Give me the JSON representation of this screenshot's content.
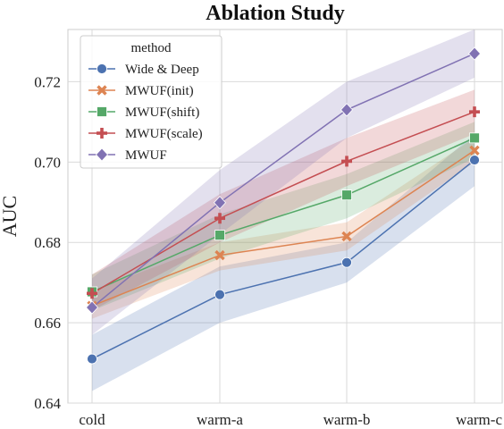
{
  "chart_data": {
    "type": "line",
    "title": "Ablation Study",
    "xlabel": "",
    "ylabel": "AUC",
    "categories": [
      "cold",
      "warm-a",
      "warm-b",
      "warm-c"
    ],
    "ylim": [
      0.64,
      0.733
    ],
    "yticks": [
      "0.64",
      "0.66",
      "0.68",
      "0.70",
      "0.72"
    ],
    "grid": true,
    "legend": {
      "title": "method",
      "placement": "top-left"
    },
    "series": [
      {
        "name": "Wide & Deep",
        "color": "#4c72b0",
        "marker": "circle",
        "values": [
          0.651,
          0.667,
          0.675,
          0.7005
        ],
        "band_low": [
          0.643,
          0.66,
          0.67,
          0.694
        ],
        "band_high": [
          0.657,
          0.674,
          0.68,
          0.707
        ]
      },
      {
        "name": "MWUF(init)",
        "color": "#dd8452",
        "marker": "x",
        "values": [
          0.6642,
          0.6768,
          0.6815,
          0.7029
        ],
        "band_low": [
          0.661,
          0.673,
          0.678,
          0.7
        ],
        "band_high": [
          0.668,
          0.68,
          0.685,
          0.706
        ]
      },
      {
        "name": "MWUF(shift)",
        "color": "#55a868",
        "marker": "square",
        "values": [
          0.6677,
          0.6818,
          0.6918,
          0.706
        ],
        "band_low": [
          0.663,
          0.676,
          0.686,
          0.701
        ],
        "band_high": [
          0.672,
          0.687,
          0.697,
          0.71
        ]
      },
      {
        "name": "MWUF(scale)",
        "color": "#c44e52",
        "marker": "plus",
        "values": [
          0.6673,
          0.686,
          0.7002,
          0.7125
        ],
        "band_low": [
          0.663,
          0.68,
          0.694,
          0.707
        ],
        "band_high": [
          0.672,
          0.692,
          0.706,
          0.718
        ]
      },
      {
        "name": "MWUF",
        "color": "#8172b3",
        "marker": "diamond",
        "values": [
          0.6638,
          0.6899,
          0.713,
          0.727
        ],
        "band_low": [
          0.657,
          0.682,
          0.706,
          0.721
        ],
        "band_high": [
          0.671,
          0.698,
          0.72,
          0.733
        ]
      }
    ]
  }
}
